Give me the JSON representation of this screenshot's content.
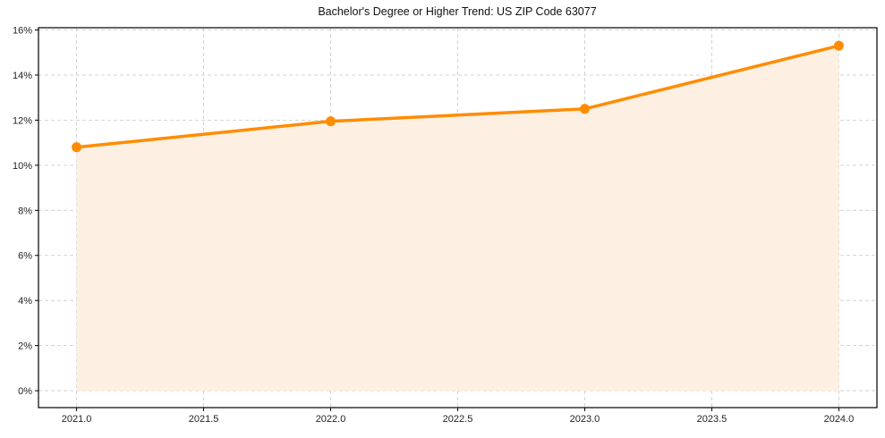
{
  "chart_data": {
    "type": "line",
    "title": "Bachelor's Degree or Higher Trend: US ZIP Code 63077",
    "xlabel": "",
    "ylabel": "",
    "x": [
      2021,
      2022,
      2023,
      2024
    ],
    "values": [
      10.8,
      11.95,
      12.5,
      15.3
    ],
    "series": [
      {
        "name": "Bachelor's Degree or Higher",
        "values": [
          10.8,
          11.95,
          12.5,
          15.3
        ],
        "color": "#ff8c00",
        "fill": "#fdf0e2"
      }
    ],
    "xticks": [
      "2021.0",
      "2021.5",
      "2022.0",
      "2022.5",
      "2023.0",
      "2023.5",
      "2024.0"
    ],
    "yticks": [
      "0%",
      "2%",
      "4%",
      "6%",
      "8%",
      "10%",
      "12%",
      "14%",
      "16%"
    ],
    "xlim": [
      2020.85,
      2024.15
    ],
    "ylim": [
      -0.75,
      16.1
    ],
    "grid": true,
    "legend": null
  }
}
